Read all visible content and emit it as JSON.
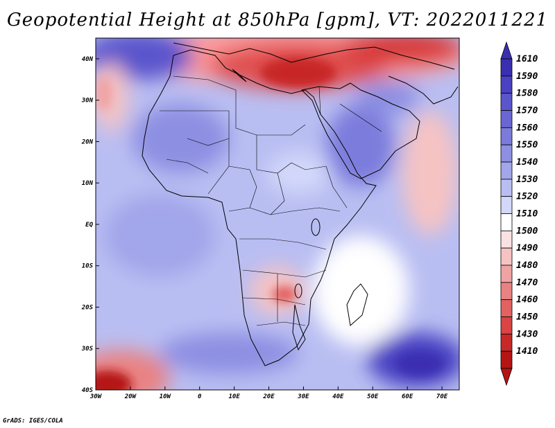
{
  "title": "Geopotential Height at 850hPa [gpm], VT: 2022011221",
  "credit": "GrADS: IGES/COLA",
  "map": {
    "lon_range": [
      -30,
      75
    ],
    "lat_range": [
      -40,
      45
    ],
    "lon_ticks": [
      {
        "value": -30,
        "label": "30W"
      },
      {
        "value": -20,
        "label": "20W"
      },
      {
        "value": -10,
        "label": "10W"
      },
      {
        "value": 0,
        "label": "0"
      },
      {
        "value": 10,
        "label": "10E"
      },
      {
        "value": 20,
        "label": "20E"
      },
      {
        "value": 30,
        "label": "30E"
      },
      {
        "value": 40,
        "label": "40E"
      },
      {
        "value": 50,
        "label": "50E"
      },
      {
        "value": 60,
        "label": "60E"
      },
      {
        "value": 70,
        "label": "70E"
      }
    ],
    "lat_ticks": [
      {
        "value": 40,
        "label": "40N"
      },
      {
        "value": 30,
        "label": "30N"
      },
      {
        "value": 20,
        "label": "20N"
      },
      {
        "value": 10,
        "label": "10N"
      },
      {
        "value": 0,
        "label": "EQ"
      },
      {
        "value": -10,
        "label": "10S"
      },
      {
        "value": -20,
        "label": "20S"
      },
      {
        "value": -30,
        "label": "30S"
      },
      {
        "value": -40,
        "label": "40S"
      }
    ]
  },
  "colorbar": {
    "levels": [
      "1610",
      "1590",
      "1580",
      "1570",
      "1560",
      "1550",
      "1540",
      "1530",
      "1520",
      "1510",
      "1500",
      "1490",
      "1480",
      "1470",
      "1460",
      "1450",
      "1430",
      "1410"
    ],
    "colors": [
      "#3a2fb0",
      "#4a42c2",
      "#5a55cc",
      "#6a67d4",
      "#7b7bdc",
      "#8d8fe2",
      "#a2a6ea",
      "#b9bef2",
      "#d3d8fa",
      "#ffffff",
      "#fbe2e2",
      "#f6c3c3",
      "#f0a3a3",
      "#e98282",
      "#e26262",
      "#d94444",
      "#c82828",
      "#b51414"
    ]
  },
  "highs_lows": [
    {
      "name": "mediterranean-low",
      "lon": 33,
      "lat": 37,
      "value": 1430
    },
    {
      "name": "southeast-atlantic-low",
      "lon": -28,
      "lat": -38,
      "value": 1430
    },
    {
      "name": "indian-ocean-high",
      "lon": 65,
      "lat": -32,
      "value": 1590
    },
    {
      "name": "north-atlantic-high",
      "lon": -15,
      "lat": 43,
      "value": 1580
    }
  ]
}
